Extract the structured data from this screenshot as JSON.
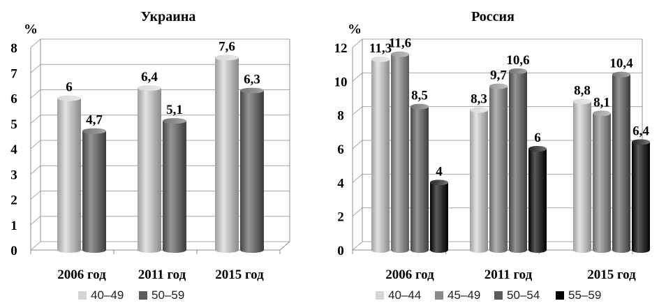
{
  "colors": {
    "light": "#d4d4d4",
    "mid": "#8a8a8a",
    "dark": "#5c5c5c",
    "black": "#000000"
  },
  "chart_data": [
    {
      "type": "bar",
      "title": "Украина",
      "unit_label": "%",
      "categories": [
        "2006 год",
        "2011 год",
        "2015 год"
      ],
      "series": [
        {
          "name": "40–49",
          "values": [
            6,
            6.4,
            7.6
          ],
          "color_key": "light"
        },
        {
          "name": "50–59",
          "values": [
            4.7,
            5.1,
            6.3
          ],
          "color_key": "dark"
        }
      ],
      "data_labels": [
        [
          "6",
          "6,4",
          "7,6"
        ],
        [
          "4,7",
          "5,1",
          "6,3"
        ]
      ],
      "ylim": [
        0,
        8
      ],
      "yticks": [
        "0",
        "1",
        "2",
        "3",
        "4",
        "5",
        "6",
        "7",
        "8"
      ],
      "grid": true,
      "legend": "bottom"
    },
    {
      "type": "bar",
      "title": "Россия",
      "unit_label": "%",
      "categories": [
        "2006 год",
        "2011 год",
        "2015 год"
      ],
      "series": [
        {
          "name": "40–44",
          "values": [
            11.3,
            8.3,
            8.8
          ],
          "color_key": "light"
        },
        {
          "name": "45–49",
          "values": [
            11.6,
            9.7,
            8.1
          ],
          "color_key": "mid"
        },
        {
          "name": "50–54",
          "values": [
            8.5,
            10.6,
            10.4
          ],
          "color_key": "dark"
        },
        {
          "name": "55–59",
          "values": [
            4,
            6,
            6.4
          ],
          "color_key": "black"
        }
      ],
      "data_labels": [
        [
          "11,3",
          "8,3",
          "8,8"
        ],
        [
          "11,6",
          "9,7",
          "8,1"
        ],
        [
          "8,5",
          "10,6",
          "10,4"
        ],
        [
          "4",
          "6",
          "6,4"
        ]
      ],
      "ylim": [
        0,
        12
      ],
      "yticks": [
        "0",
        "2",
        "4",
        "6",
        "8",
        "10",
        "12"
      ],
      "grid": true,
      "legend": "bottom"
    }
  ]
}
